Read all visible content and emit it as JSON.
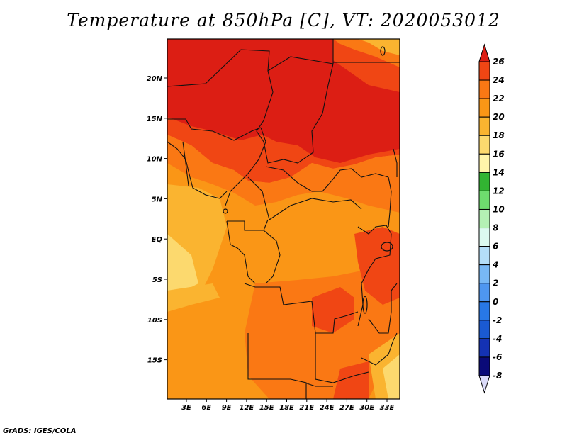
{
  "title": "Temperature at 850hPa [C], VT: 2020053012",
  "footer": "GrADS: IGES/COLA",
  "map": {
    "lat_labels": [
      "20N",
      "15N",
      "10N",
      "5N",
      "EQ",
      "5S",
      "10S",
      "15S"
    ],
    "lon_labels": [
      "3E",
      "6E",
      "9E",
      "12E",
      "15E",
      "18E",
      "21E",
      "24E",
      "27E",
      "30E",
      "33E"
    ]
  },
  "colorbar": {
    "levels": [
      {
        "label": "26",
        "color": "#dc1e14"
      },
      {
        "label": "24",
        "color": "#f04614"
      },
      {
        "label": "22",
        "color": "#fa7814"
      },
      {
        "label": "20",
        "color": "#fa9616"
      },
      {
        "label": "18",
        "color": "#fab430"
      },
      {
        "label": "16",
        "color": "#fcd96e"
      },
      {
        "label": "14",
        "color": "#fff5aa"
      },
      {
        "label": "12",
        "color": "#32b432"
      },
      {
        "label": "10",
        "color": "#6edc6e"
      },
      {
        "label": "8",
        "color": "#b4f0b4"
      },
      {
        "label": "6",
        "color": "#dcfaf0"
      },
      {
        "label": "4",
        "color": "#b4def8"
      },
      {
        "label": "2",
        "color": "#78b8f5"
      },
      {
        "label": "0",
        "color": "#4e96f0"
      },
      {
        "label": "-2",
        "color": "#2878e6"
      },
      {
        "label": "-4",
        "color": "#1a5ad2"
      },
      {
        "label": "-6",
        "color": "#1432b4"
      },
      {
        "label": "-8",
        "color": "#0a0a78"
      }
    ],
    "bottom_color": "#dcdcfa"
  }
}
